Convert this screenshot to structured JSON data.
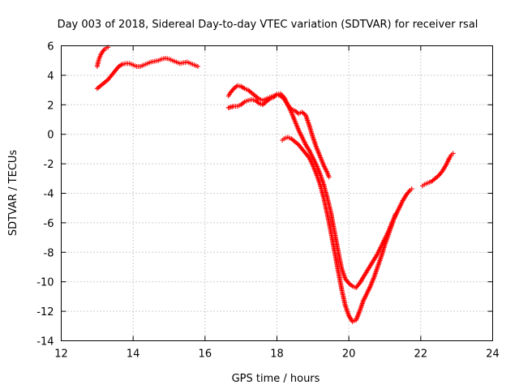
{
  "chart_data": {
    "type": "scatter",
    "title": "Day 003 of 2018, Sidereal Day-to-day VTEC variation (SDTVAR) for receiver rsal",
    "xlabel": "GPS time / hours",
    "ylabel": "SDTVAR / TECUs",
    "xlim": [
      12,
      24
    ],
    "ylim": [
      -14,
      6
    ],
    "xticks": [
      12,
      14,
      16,
      18,
      20,
      22,
      24
    ],
    "yticks": [
      -14,
      -12,
      -10,
      -8,
      -6,
      -4,
      -2,
      0,
      2,
      4,
      6
    ],
    "grid": true,
    "marker": "+",
    "color": "#ff0000",
    "series": [
      {
        "name": "track-a",
        "points": [
          [
            13.0,
            4.6
          ],
          [
            13.05,
            5.1
          ],
          [
            13.1,
            5.4
          ],
          [
            13.15,
            5.6
          ],
          [
            13.2,
            5.75
          ],
          [
            13.25,
            5.85
          ],
          [
            13.3,
            5.9
          ]
        ]
      },
      {
        "name": "track-b",
        "points": [
          [
            13.0,
            3.1
          ],
          [
            13.1,
            3.3
          ],
          [
            13.2,
            3.5
          ],
          [
            13.3,
            3.7
          ],
          [
            13.4,
            4.0
          ],
          [
            13.5,
            4.3
          ],
          [
            13.6,
            4.6
          ],
          [
            13.7,
            4.75
          ],
          [
            13.8,
            4.8
          ],
          [
            13.9,
            4.8
          ],
          [
            14.0,
            4.7
          ],
          [
            14.1,
            4.6
          ],
          [
            14.2,
            4.6
          ],
          [
            14.3,
            4.7
          ],
          [
            14.4,
            4.8
          ],
          [
            14.5,
            4.9
          ],
          [
            14.6,
            4.95
          ],
          [
            14.7,
            5.0
          ],
          [
            14.8,
            5.1
          ],
          [
            14.9,
            5.15
          ],
          [
            15.0,
            5.1
          ],
          [
            15.1,
            5.0
          ],
          [
            15.2,
            4.9
          ],
          [
            15.3,
            4.8
          ],
          [
            15.4,
            4.85
          ],
          [
            15.5,
            4.9
          ],
          [
            15.6,
            4.8
          ],
          [
            15.7,
            4.7
          ],
          [
            15.8,
            4.6
          ]
        ]
      },
      {
        "name": "track-c",
        "points": [
          [
            16.65,
            2.6
          ],
          [
            16.7,
            2.8
          ],
          [
            16.8,
            3.1
          ],
          [
            16.9,
            3.3
          ],
          [
            17.0,
            3.25
          ],
          [
            17.1,
            3.1
          ],
          [
            17.2,
            3.0
          ],
          [
            17.3,
            2.8
          ],
          [
            17.4,
            2.6
          ],
          [
            17.5,
            2.4
          ],
          [
            17.6,
            2.3
          ],
          [
            17.7,
            2.4
          ],
          [
            17.8,
            2.5
          ],
          [
            17.9,
            2.6
          ],
          [
            18.0,
            2.7
          ],
          [
            18.1,
            2.6
          ],
          [
            18.2,
            2.4
          ],
          [
            18.3,
            2.0
          ],
          [
            18.4,
            1.7
          ],
          [
            18.5,
            1.6
          ],
          [
            18.6,
            1.4
          ],
          [
            18.7,
            1.5
          ],
          [
            18.8,
            1.3
          ],
          [
            18.9,
            0.6
          ],
          [
            19.0,
            -0.2
          ],
          [
            19.1,
            -0.9
          ],
          [
            19.2,
            -1.5
          ],
          [
            19.3,
            -2.1
          ],
          [
            19.4,
            -2.6
          ],
          [
            19.45,
            -2.9
          ]
        ]
      },
      {
        "name": "track-d",
        "points": [
          [
            16.65,
            1.8
          ],
          [
            16.8,
            1.9
          ],
          [
            16.9,
            1.9
          ],
          [
            17.0,
            2.0
          ],
          [
            17.1,
            2.2
          ],
          [
            17.2,
            2.3
          ],
          [
            17.3,
            2.35
          ],
          [
            17.4,
            2.3
          ],
          [
            17.5,
            2.1
          ],
          [
            17.6,
            2.0
          ],
          [
            17.7,
            2.2
          ],
          [
            17.8,
            2.4
          ],
          [
            17.9,
            2.5
          ],
          [
            18.0,
            2.7
          ],
          [
            18.1,
            2.75
          ],
          [
            18.2,
            2.5
          ],
          [
            18.3,
            2.0
          ],
          [
            18.4,
            1.5
          ],
          [
            18.5,
            0.9
          ],
          [
            18.6,
            0.3
          ],
          [
            18.7,
            -0.2
          ],
          [
            18.8,
            -0.7
          ],
          [
            18.9,
            -1.1
          ],
          [
            19.0,
            -1.6
          ],
          [
            19.1,
            -2.1
          ],
          [
            19.2,
            -2.7
          ],
          [
            19.3,
            -3.4
          ],
          [
            19.4,
            -4.3
          ],
          [
            19.5,
            -5.3
          ],
          [
            19.6,
            -6.6
          ],
          [
            19.7,
            -7.9
          ],
          [
            19.8,
            -9.1
          ],
          [
            19.9,
            -9.8
          ],
          [
            20.0,
            -10.1
          ],
          [
            20.1,
            -10.3
          ],
          [
            20.2,
            -10.4
          ],
          [
            20.3,
            -10.1
          ],
          [
            20.4,
            -9.7
          ],
          [
            20.5,
            -9.3
          ],
          [
            20.6,
            -8.9
          ],
          [
            20.7,
            -8.5
          ],
          [
            20.8,
            -8.1
          ],
          [
            20.9,
            -7.6
          ],
          [
            21.0,
            -7.1
          ],
          [
            21.1,
            -6.6
          ],
          [
            21.2,
            -6.0
          ],
          [
            21.3,
            -5.5
          ],
          [
            21.4,
            -5.0
          ],
          [
            21.5,
            -4.5
          ],
          [
            21.6,
            -4.1
          ],
          [
            21.7,
            -3.8
          ],
          [
            21.75,
            -3.7
          ]
        ]
      },
      {
        "name": "track-e",
        "points": [
          [
            18.15,
            -0.4
          ],
          [
            18.2,
            -0.3
          ],
          [
            18.3,
            -0.2
          ],
          [
            18.4,
            -0.3
          ],
          [
            18.5,
            -0.5
          ],
          [
            18.6,
            -0.7
          ],
          [
            18.7,
            -1.0
          ],
          [
            18.8,
            -1.3
          ],
          [
            18.9,
            -1.6
          ],
          [
            19.0,
            -2.1
          ],
          [
            19.1,
            -2.7
          ],
          [
            19.2,
            -3.4
          ],
          [
            19.3,
            -4.3
          ],
          [
            19.4,
            -5.4
          ],
          [
            19.5,
            -6.6
          ],
          [
            19.6,
            -7.9
          ],
          [
            19.7,
            -9.2
          ],
          [
            19.8,
            -10.5
          ],
          [
            19.9,
            -11.6
          ],
          [
            20.0,
            -12.3
          ],
          [
            20.1,
            -12.7
          ],
          [
            20.2,
            -12.6
          ],
          [
            20.3,
            -12.0
          ],
          [
            20.4,
            -11.3
          ],
          [
            20.5,
            -10.8
          ],
          [
            20.6,
            -10.3
          ],
          [
            20.7,
            -9.7
          ],
          [
            20.8,
            -9.0
          ],
          [
            20.9,
            -8.3
          ],
          [
            21.0,
            -7.5
          ],
          [
            21.1,
            -6.8
          ],
          [
            21.2,
            -6.1
          ],
          [
            21.3,
            -5.4
          ]
        ]
      },
      {
        "name": "track-f",
        "points": [
          [
            22.05,
            -3.5
          ],
          [
            22.1,
            -3.4
          ],
          [
            22.2,
            -3.3
          ],
          [
            22.3,
            -3.2
          ],
          [
            22.4,
            -3.0
          ],
          [
            22.5,
            -2.8
          ],
          [
            22.6,
            -2.5
          ],
          [
            22.7,
            -2.1
          ],
          [
            22.8,
            -1.6
          ],
          [
            22.85,
            -1.4
          ],
          [
            22.9,
            -1.3
          ]
        ]
      }
    ]
  }
}
